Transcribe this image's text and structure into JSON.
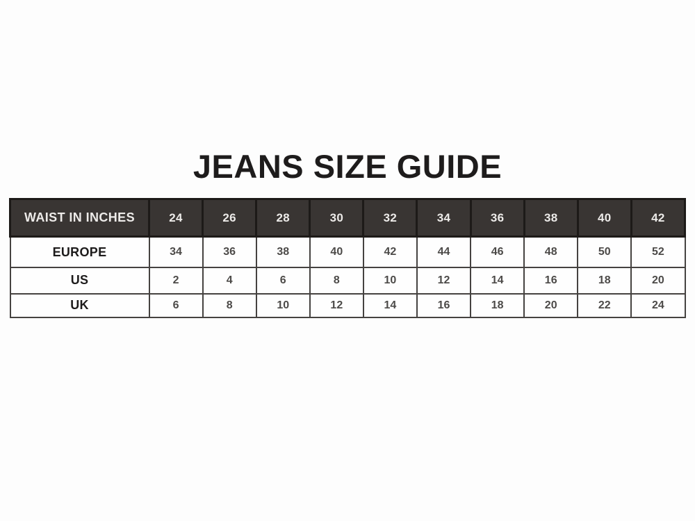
{
  "page": {
    "title": "JEANS SIZE GUIDE"
  },
  "size_table": {
    "header": {
      "label": "WAIST IN INCHES",
      "values": [
        "24",
        "26",
        "28",
        "30",
        "32",
        "34",
        "36",
        "38",
        "40",
        "42"
      ]
    },
    "rows": [
      {
        "label": "EUROPE",
        "values": [
          "34",
          "36",
          "38",
          "40",
          "42",
          "44",
          "46",
          "48",
          "50",
          "52"
        ]
      },
      {
        "label": "US",
        "values": [
          "2",
          "4",
          "6",
          "8",
          "10",
          "12",
          "14",
          "16",
          "18",
          "20"
        ]
      },
      {
        "label": "UK",
        "values": [
          "6",
          "8",
          "10",
          "12",
          "14",
          "16",
          "18",
          "20",
          "22",
          "24"
        ]
      }
    ]
  },
  "colors": {
    "page_background": "#fdfdfd",
    "title_text": "#1e1c1c",
    "header_background": "#393533",
    "header_text": "#edebe9",
    "header_divider": "#1d1a18",
    "cell_border": "#454240",
    "cell_text": "#4c4a48",
    "label_text": "#1d1b1b"
  }
}
